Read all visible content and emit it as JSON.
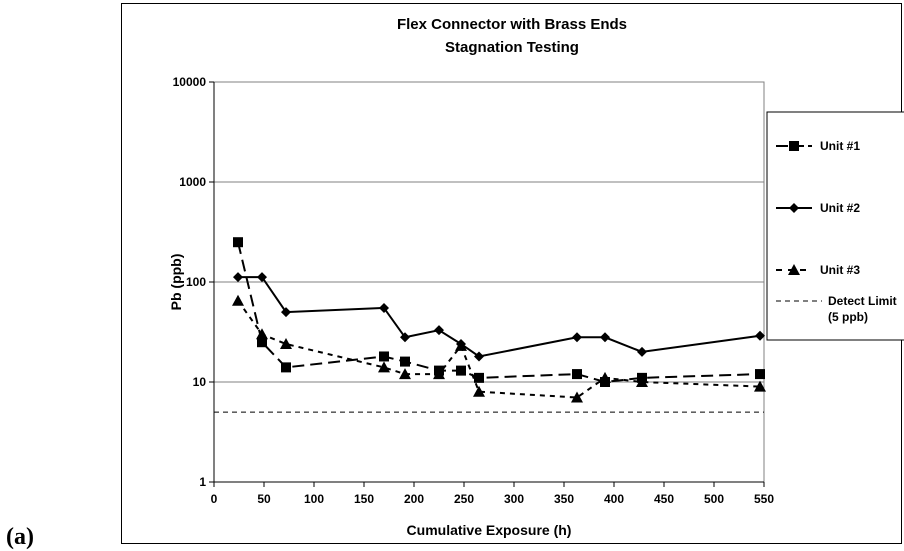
{
  "panel_label": "(a)",
  "chart_data": {
    "type": "line",
    "title": "Flex Connector with Brass Ends",
    "subtitle": "Stagnation Testing",
    "xlabel": "Cumulative Exposure (h)",
    "ylabel": "Pb (ppb)",
    "xlim": [
      0,
      550
    ],
    "ylim": [
      1,
      10000
    ],
    "yscale": "log",
    "x_ticks": [
      0,
      50,
      100,
      150,
      200,
      250,
      300,
      350,
      400,
      450,
      500,
      550
    ],
    "x_tick_labels": [
      "0",
      "50",
      "100",
      "150",
      "200",
      "250",
      "300",
      "350",
      "400",
      "450",
      "500",
      "550"
    ],
    "y_ticks": [
      1,
      10,
      100,
      1000,
      10000
    ],
    "y_tick_labels": [
      "1",
      "10",
      "100",
      "1000",
      "10000"
    ],
    "grid": "horizontal major gridlines",
    "legend_position": "right",
    "series": [
      {
        "name": "Unit #1",
        "marker": "square",
        "line": "long-dash",
        "color": "#000000",
        "x": [
          24,
          48,
          72,
          170,
          191,
          225,
          247,
          265,
          363,
          391,
          428,
          546
        ],
        "y": [
          250,
          25,
          14,
          18,
          16,
          13,
          13,
          11,
          12,
          10,
          11,
          12
        ]
      },
      {
        "name": "Unit #2",
        "marker": "diamond",
        "line": "solid",
        "color": "#000000",
        "x": [
          24,
          48,
          72,
          170,
          191,
          225,
          247,
          265,
          363,
          391,
          428,
          546
        ],
        "y": [
          112,
          112,
          50,
          55,
          28,
          33,
          24,
          18,
          28,
          28,
          20,
          29
        ]
      },
      {
        "name": "Unit #3",
        "marker": "triangle",
        "line": "short-dash",
        "color": "#000000",
        "x": [
          24,
          48,
          72,
          170,
          191,
          225,
          247,
          265,
          363,
          391,
          428,
          546
        ],
        "y": [
          65,
          30,
          24,
          14,
          12,
          12,
          23,
          8,
          7,
          11,
          10,
          9
        ]
      }
    ],
    "reference_lines": [
      {
        "name": "Detect Limit",
        "name_suffix": "(5 ppb)",
        "y": 5,
        "line": "dashed"
      }
    ]
  }
}
